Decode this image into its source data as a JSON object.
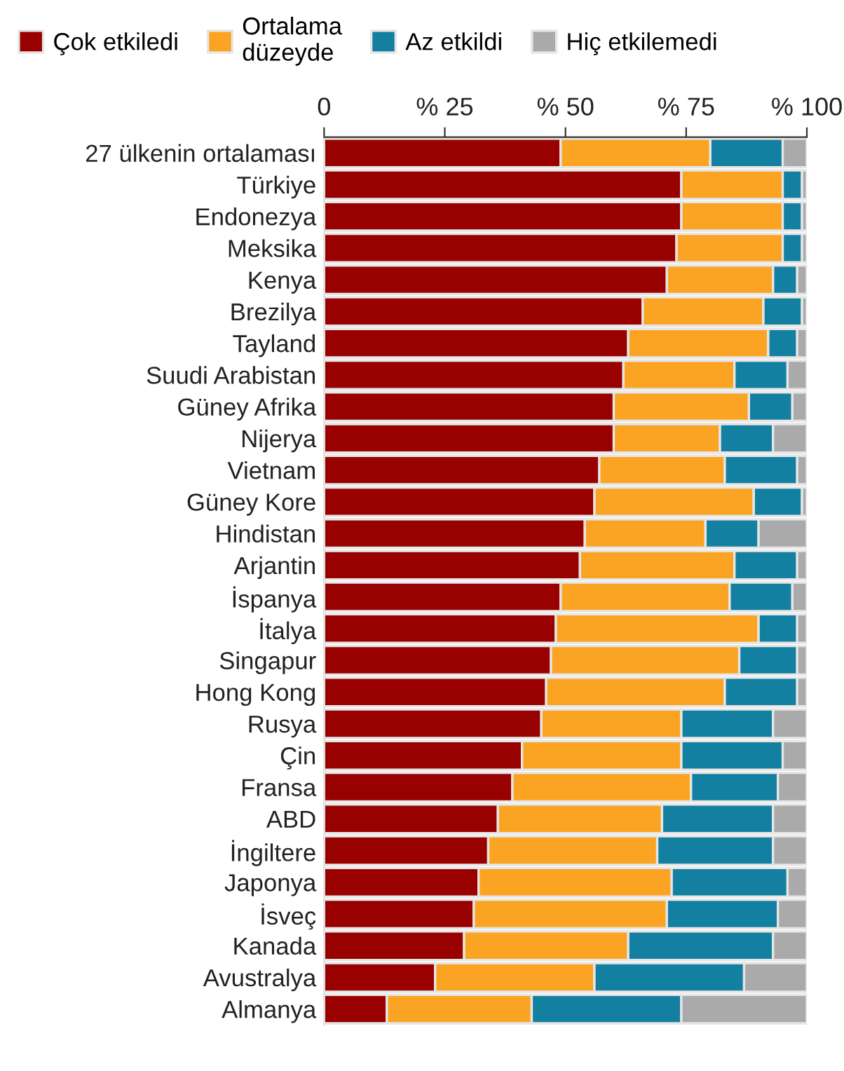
{
  "chart_data": {
    "type": "bar",
    "orientation": "horizontal",
    "stacked": true,
    "legend": "top",
    "categories": [
      "27 ülkenin ortalaması",
      "Türkiye",
      "Endonezya",
      "Meksika",
      "Kenya",
      "Brezilya",
      "Tayland",
      "Suudi Arabistan",
      "Güney Afrika",
      "Nijerya",
      "Vietnam",
      "Güney Kore",
      "Hindistan",
      "Arjantin",
      "İspanya",
      "İtalya",
      "Singapur",
      "Hong Kong",
      "Rusya",
      "Çin",
      "Fransa",
      "ABD",
      "İngiltere",
      "Japonya",
      "İsveç",
      "Kanada",
      "Avustralya",
      "Almanya"
    ],
    "xlim": [
      0,
      100
    ],
    "xticks": [
      0,
      {
        "value": 25,
        "label": "% 25"
      },
      {
        "value": 50,
        "label": "% 50"
      },
      {
        "value": 75,
        "label": "% 75"
      },
      {
        "value": 100,
        "label": "% 100"
      }
    ],
    "series": [
      {
        "name": "Çok etkiledi",
        "color": "#990000",
        "values": [
          49,
          74,
          74,
          73,
          71,
          66,
          63,
          62,
          60,
          60,
          57,
          56,
          54,
          53,
          49,
          48,
          47,
          46,
          45,
          41,
          39,
          36,
          34,
          32,
          31,
          29,
          23,
          13
        ]
      },
      {
        "name": "Ortalama\ndüzeyde",
        "color": "#fba424",
        "values": [
          31,
          21,
          21,
          22,
          22,
          25,
          29,
          23,
          28,
          22,
          26,
          33,
          25,
          32,
          35,
          42,
          39,
          37,
          29,
          33,
          37,
          34,
          35,
          40,
          40,
          34,
          33,
          30
        ]
      },
      {
        "name": "Az etkildi",
        "color": "#1380a1",
        "values": [
          15,
          4,
          4,
          4,
          5,
          8,
          6,
          11,
          9,
          11,
          15,
          10,
          11,
          13,
          13,
          8,
          12,
          15,
          19,
          21,
          18,
          23,
          24,
          24,
          23,
          30,
          31,
          31
        ]
      },
      {
        "name": "Hiç etkilemedi",
        "color": "#aaaaaa",
        "values": [
          5,
          1,
          1,
          1,
          2,
          1,
          2,
          4,
          3,
          7,
          2,
          1,
          10,
          2,
          3,
          2,
          2,
          2,
          7,
          5,
          6,
          7,
          7,
          4,
          6,
          7,
          13,
          26
        ]
      }
    ]
  }
}
